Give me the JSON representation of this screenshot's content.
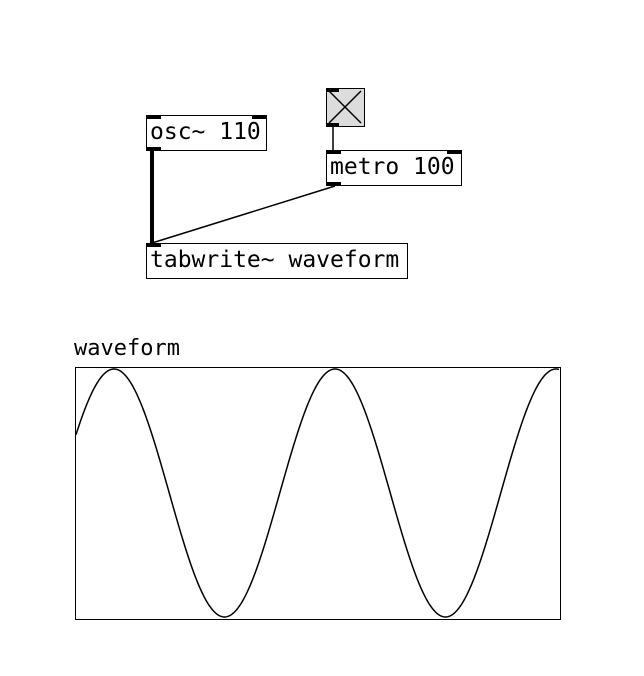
{
  "patch": {
    "objects": {
      "osc": {
        "text": "osc~ 110"
      },
      "metro": {
        "text": "metro 100"
      },
      "tabwrite": {
        "text": "tabwrite~ waveform"
      }
    },
    "toggle": {
      "state": "on"
    },
    "array": {
      "name": "waveform",
      "plot": {
        "type": "line",
        "frequency_hz": 110
      }
    }
  }
}
